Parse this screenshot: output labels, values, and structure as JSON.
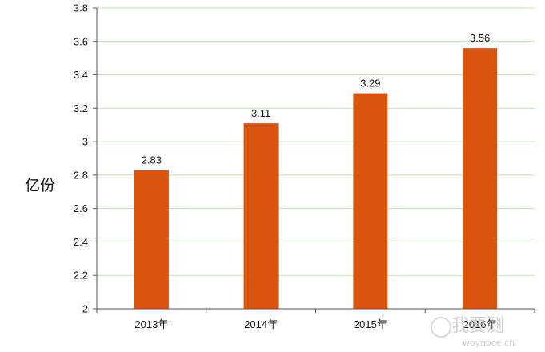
{
  "chart_data": {
    "type": "bar",
    "categories": [
      "2013年",
      "2014年",
      "2015年",
      "2016年"
    ],
    "values": [
      2.83,
      3.11,
      3.29,
      3.56
    ],
    "data_labels": [
      "2.83",
      "3.11",
      "3.29",
      "3.56"
    ],
    "ylabel": "亿份",
    "ylim": [
      2,
      3.8
    ],
    "yticks": [
      "2",
      "2.2",
      "2.4",
      "2.6",
      "2.8",
      "3",
      "3.2",
      "3.4",
      "3.6",
      "3.8"
    ],
    "grid": true,
    "bar_color": "#d9540c",
    "grid_color": "#c9e1b6"
  },
  "watermark": {
    "text": "我要测",
    "url": "woyaoce.cn"
  }
}
